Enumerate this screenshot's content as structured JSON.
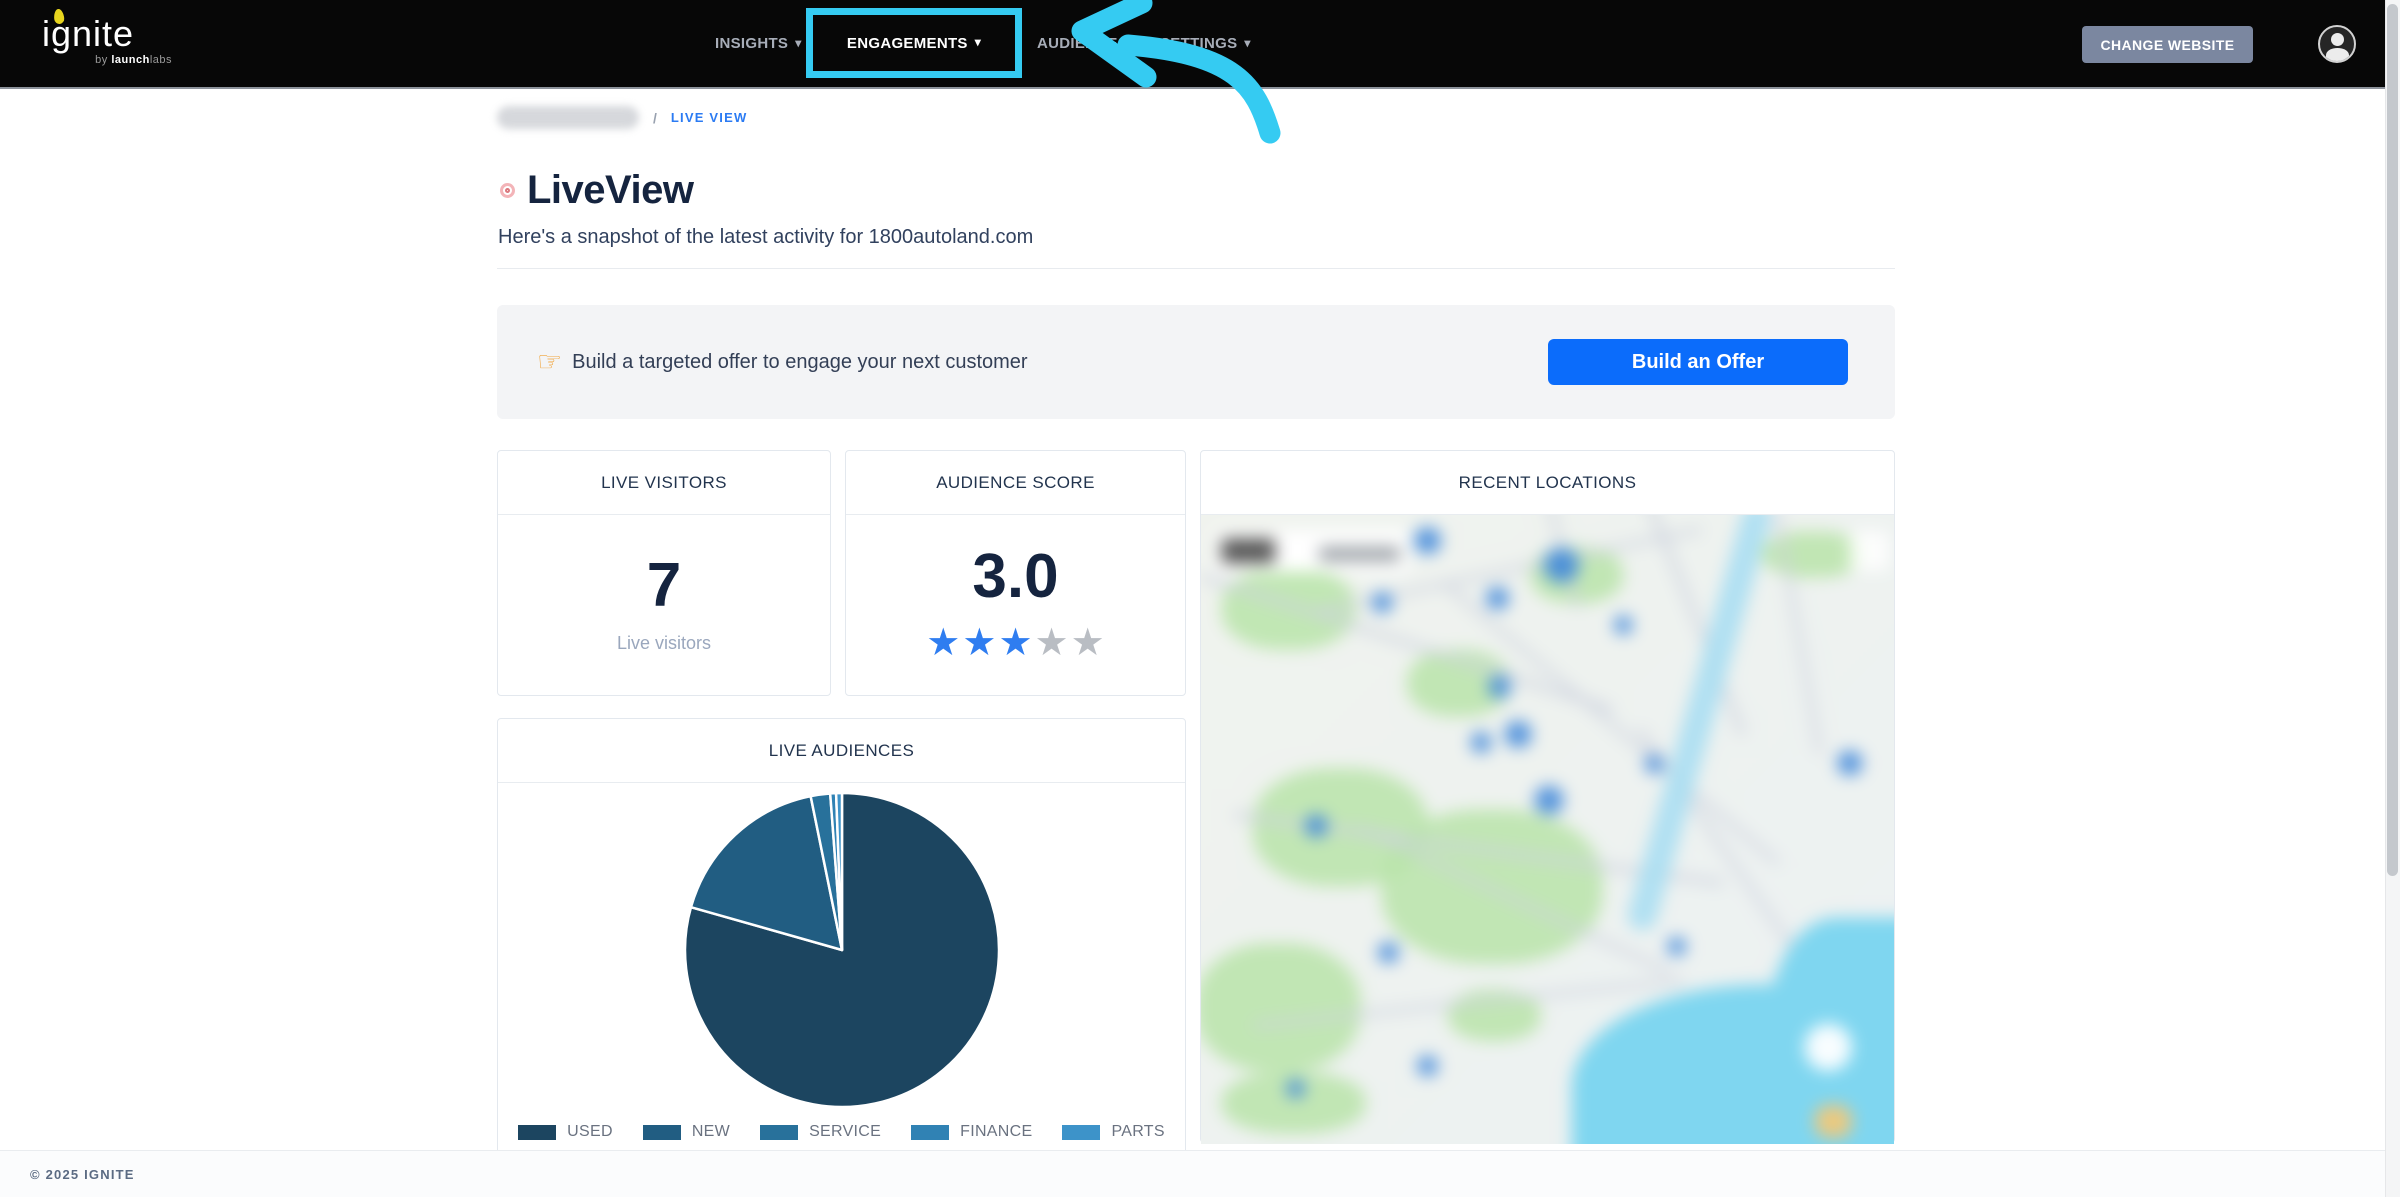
{
  "navbar": {
    "logo": {
      "text": "ignite",
      "byline_prefix": "by ",
      "byline_bold": "launch",
      "byline_light": "labs"
    },
    "items": [
      {
        "label": "INSIGHTS"
      },
      {
        "label": "ENGAGEMENTS",
        "highlighted": true
      },
      {
        "label": "AUDIENCES"
      },
      {
        "label": "SETTINGS"
      }
    ],
    "change_website_label": "CHANGE WEBSITE"
  },
  "breadcrumb": {
    "separator": "/",
    "current": "LIVE VIEW"
  },
  "page": {
    "title": "LiveView",
    "subtitle": "Here's a snapshot of the latest activity for 1800autoland.com"
  },
  "offer_banner": {
    "icon_glyph": "☞",
    "text": "Build a targeted offer to engage your next customer",
    "button_label": "Build an Offer"
  },
  "cards": {
    "live_visitors": {
      "title": "LIVE VISITORS",
      "value": "7",
      "label": "Live visitors"
    },
    "audience_score": {
      "title": "AUDIENCE SCORE",
      "value": "3.0",
      "stars_filled": 3,
      "stars_total": 5
    },
    "live_audiences": {
      "title": "LIVE AUDIENCES"
    },
    "recent_locations": {
      "title": "RECENT LOCATIONS"
    }
  },
  "chart_data": {
    "type": "pie",
    "title": "LIVE AUDIENCES",
    "categories": [
      "USED",
      "NEW",
      "SERVICE",
      "FINANCE",
      "PARTS"
    ],
    "values": [
      79.4,
      17.4,
      2.0,
      0.6,
      0.6
    ],
    "colors": [
      "#1c4560",
      "#215d82",
      "#28719b",
      "#3082b4",
      "#3d93c9"
    ],
    "legend_position": "bottom",
    "slice_border_color": "#ffffff"
  },
  "annotations": {
    "highlight_color": "#35cbf2",
    "highlighted_nav_item": "ENGAGEMENTS"
  },
  "colors": {
    "primary_button_blue": "#0b6cfb",
    "breadcrumb_blue": "#2b7bf3",
    "star_blue": "#2f7df0",
    "star_gray": "#b9bdc3",
    "navy_text": "#15243f"
  },
  "footer": {
    "copyright": "© 2025 IGNITE"
  }
}
